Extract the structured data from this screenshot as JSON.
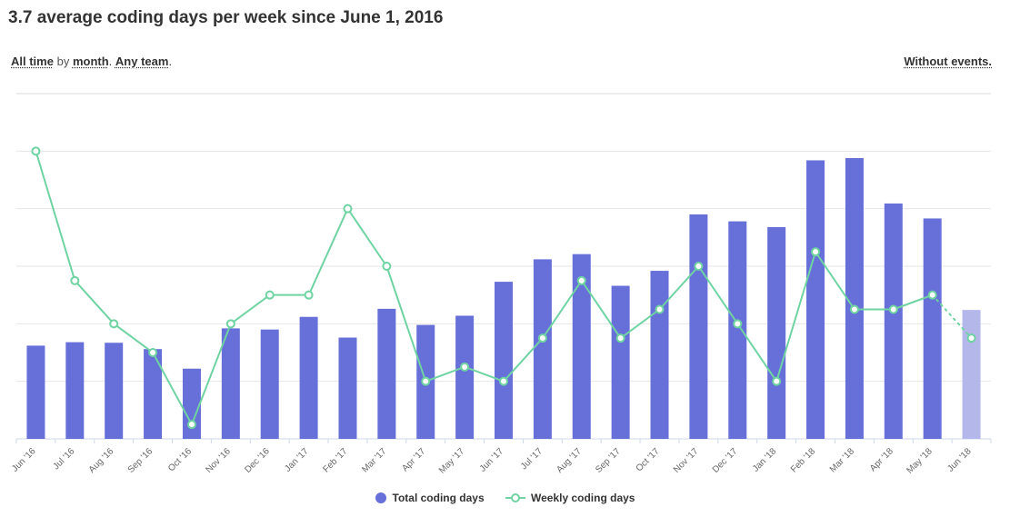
{
  "header": {
    "title": "3.7 average coding days per week since June 1, 2016"
  },
  "filters": {
    "time_range": "All time",
    "by_word": "by",
    "granularity": "month",
    "granularity_suffix": ".",
    "team": "Any team",
    "team_suffix": ".",
    "events": "Without events."
  },
  "colors": {
    "bar": "#6670d8",
    "bar_partial": "#b3b7ea",
    "line": "#6fd3a2",
    "grid": "#e6e6e6",
    "axis": "#cfd8e8"
  },
  "chart_data": {
    "type": "bar+line",
    "categories": [
      "Jun '16",
      "Jul '16",
      "Aug '16",
      "Sep '16",
      "Oct '16",
      "Nov '16",
      "Dec '16",
      "Jan '17",
      "Feb '17",
      "Mar '17",
      "Apr '17",
      "May '17",
      "Jun '17",
      "Jul '17",
      "Aug '17",
      "Sep '17",
      "Oct '17",
      "Nov '17",
      "Dec '17",
      "Jan '18",
      "Feb '18",
      "Mar '18",
      "Apr '18",
      "May '18",
      "Jun '18"
    ],
    "series": [
      {
        "name": "Total coding days",
        "type": "bar",
        "values": [
          16.2,
          16.8,
          16.7,
          15.6,
          12.2,
          19.2,
          19.0,
          21.2,
          17.6,
          22.6,
          19.8,
          21.4,
          27.3,
          31.2,
          32.1,
          26.6,
          29.2,
          39.0,
          37.8,
          36.8,
          48.4,
          48.8,
          40.9,
          38.3,
          22.4
        ],
        "partial_last": true
      },
      {
        "name": "Weekly coding days",
        "type": "line",
        "values": [
          5.0,
          2.75,
          2.0,
          1.5,
          0.25,
          2.0,
          2.5,
          2.5,
          4.0,
          3.0,
          1.0,
          1.25,
          1.0,
          1.75,
          2.75,
          1.75,
          2.25,
          3.0,
          2.0,
          1.0,
          3.25,
          2.25,
          2.25,
          2.5,
          1.75
        ],
        "dotted_last_segment": true
      }
    ],
    "ylim_bars": [
      0,
      60
    ],
    "ylim_line": [
      0,
      6
    ],
    "grid": true,
    "legend": "bottom-center"
  }
}
